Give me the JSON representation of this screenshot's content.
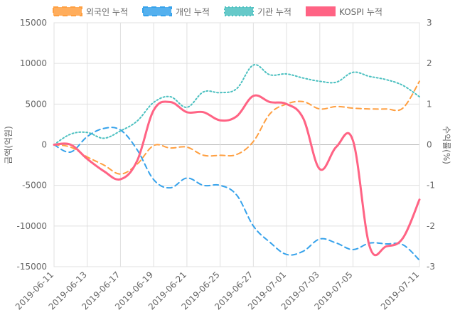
{
  "chart_data": {
    "type": "line",
    "x": [
      "2019-06-11",
      "2019-06-12",
      "2019-06-13",
      "2019-06-14",
      "2019-06-17",
      "2019-06-18",
      "2019-06-19",
      "2019-06-20",
      "2019-06-21",
      "2019-06-24",
      "2019-06-25",
      "2019-06-26",
      "2019-06-27",
      "2019-06-28",
      "2019-07-01",
      "2019-07-02",
      "2019-07-03",
      "2019-07-04",
      "2019-07-05",
      "2019-07-08",
      "2019-07-09",
      "2019-07-10",
      "2019-07-11"
    ],
    "x_tick_labels": [
      "2019-06-11",
      "2019-06-13",
      "2019-06-17",
      "2019-06-19",
      "2019-06-21",
      "2019-06-25",
      "2019-06-27",
      "2019-07-01",
      "2019-07-03",
      "2019-07-05",
      "2019-07-11"
    ],
    "ylabel_left": "금액(억원)",
    "ylabel_right": "수익률(%)",
    "y_left": {
      "min": -15000,
      "max": 15000,
      "ticks": [
        15000,
        10000,
        5000,
        0,
        -5000,
        -10000,
        -15000
      ]
    },
    "y_right": {
      "min": -3,
      "max": 3,
      "ticks": [
        3,
        2,
        1,
        0,
        -1,
        -2,
        -3
      ]
    },
    "legend_position": "top",
    "grid": true,
    "series": [
      {
        "name": "외국인 누적",
        "axis": "left",
        "color": "#ff9f40",
        "style": "dashed",
        "values": [
          0,
          -300,
          -1500,
          -2500,
          -3600,
          -2400,
          -100,
          -400,
          -300,
          -1300,
          -1300,
          -1200,
          400,
          3800,
          5000,
          5300,
          4400,
          4700,
          4500,
          4400,
          4400,
          4500,
          7800
        ]
      },
      {
        "name": "개인 누적",
        "axis": "left",
        "color": "#36a2eb",
        "style": "dashed",
        "values": [
          0,
          -900,
          1000,
          2000,
          1800,
          -600,
          -4300,
          -5300,
          -4100,
          -5000,
          -5000,
          -6200,
          -10000,
          -12000,
          -13500,
          -13100,
          -11600,
          -12100,
          -12900,
          -12100,
          -12200,
          -12300,
          -14200
        ]
      },
      {
        "name": "기관 누적",
        "axis": "left",
        "color": "#4bc0c0",
        "style": "dotted",
        "values": [
          0,
          1300,
          1500,
          800,
          1700,
          2900,
          5200,
          5900,
          4600,
          6500,
          6400,
          6900,
          9800,
          8600,
          8700,
          8200,
          7800,
          7700,
          8900,
          8400,
          8000,
          7300,
          5900
        ]
      },
      {
        "name": "KOSPI 누적",
        "axis": "right",
        "color": "#ff6384",
        "style": "solid",
        "values": [
          0,
          0,
          -0.35,
          -0.65,
          -0.85,
          -0.4,
          0.85,
          1.05,
          0.8,
          0.8,
          0.6,
          0.7,
          1.2,
          1.05,
          1.0,
          0.65,
          -0.6,
          -0.05,
          0.1,
          -2.5,
          -2.5,
          -2.3,
          -1.35
        ]
      }
    ]
  }
}
